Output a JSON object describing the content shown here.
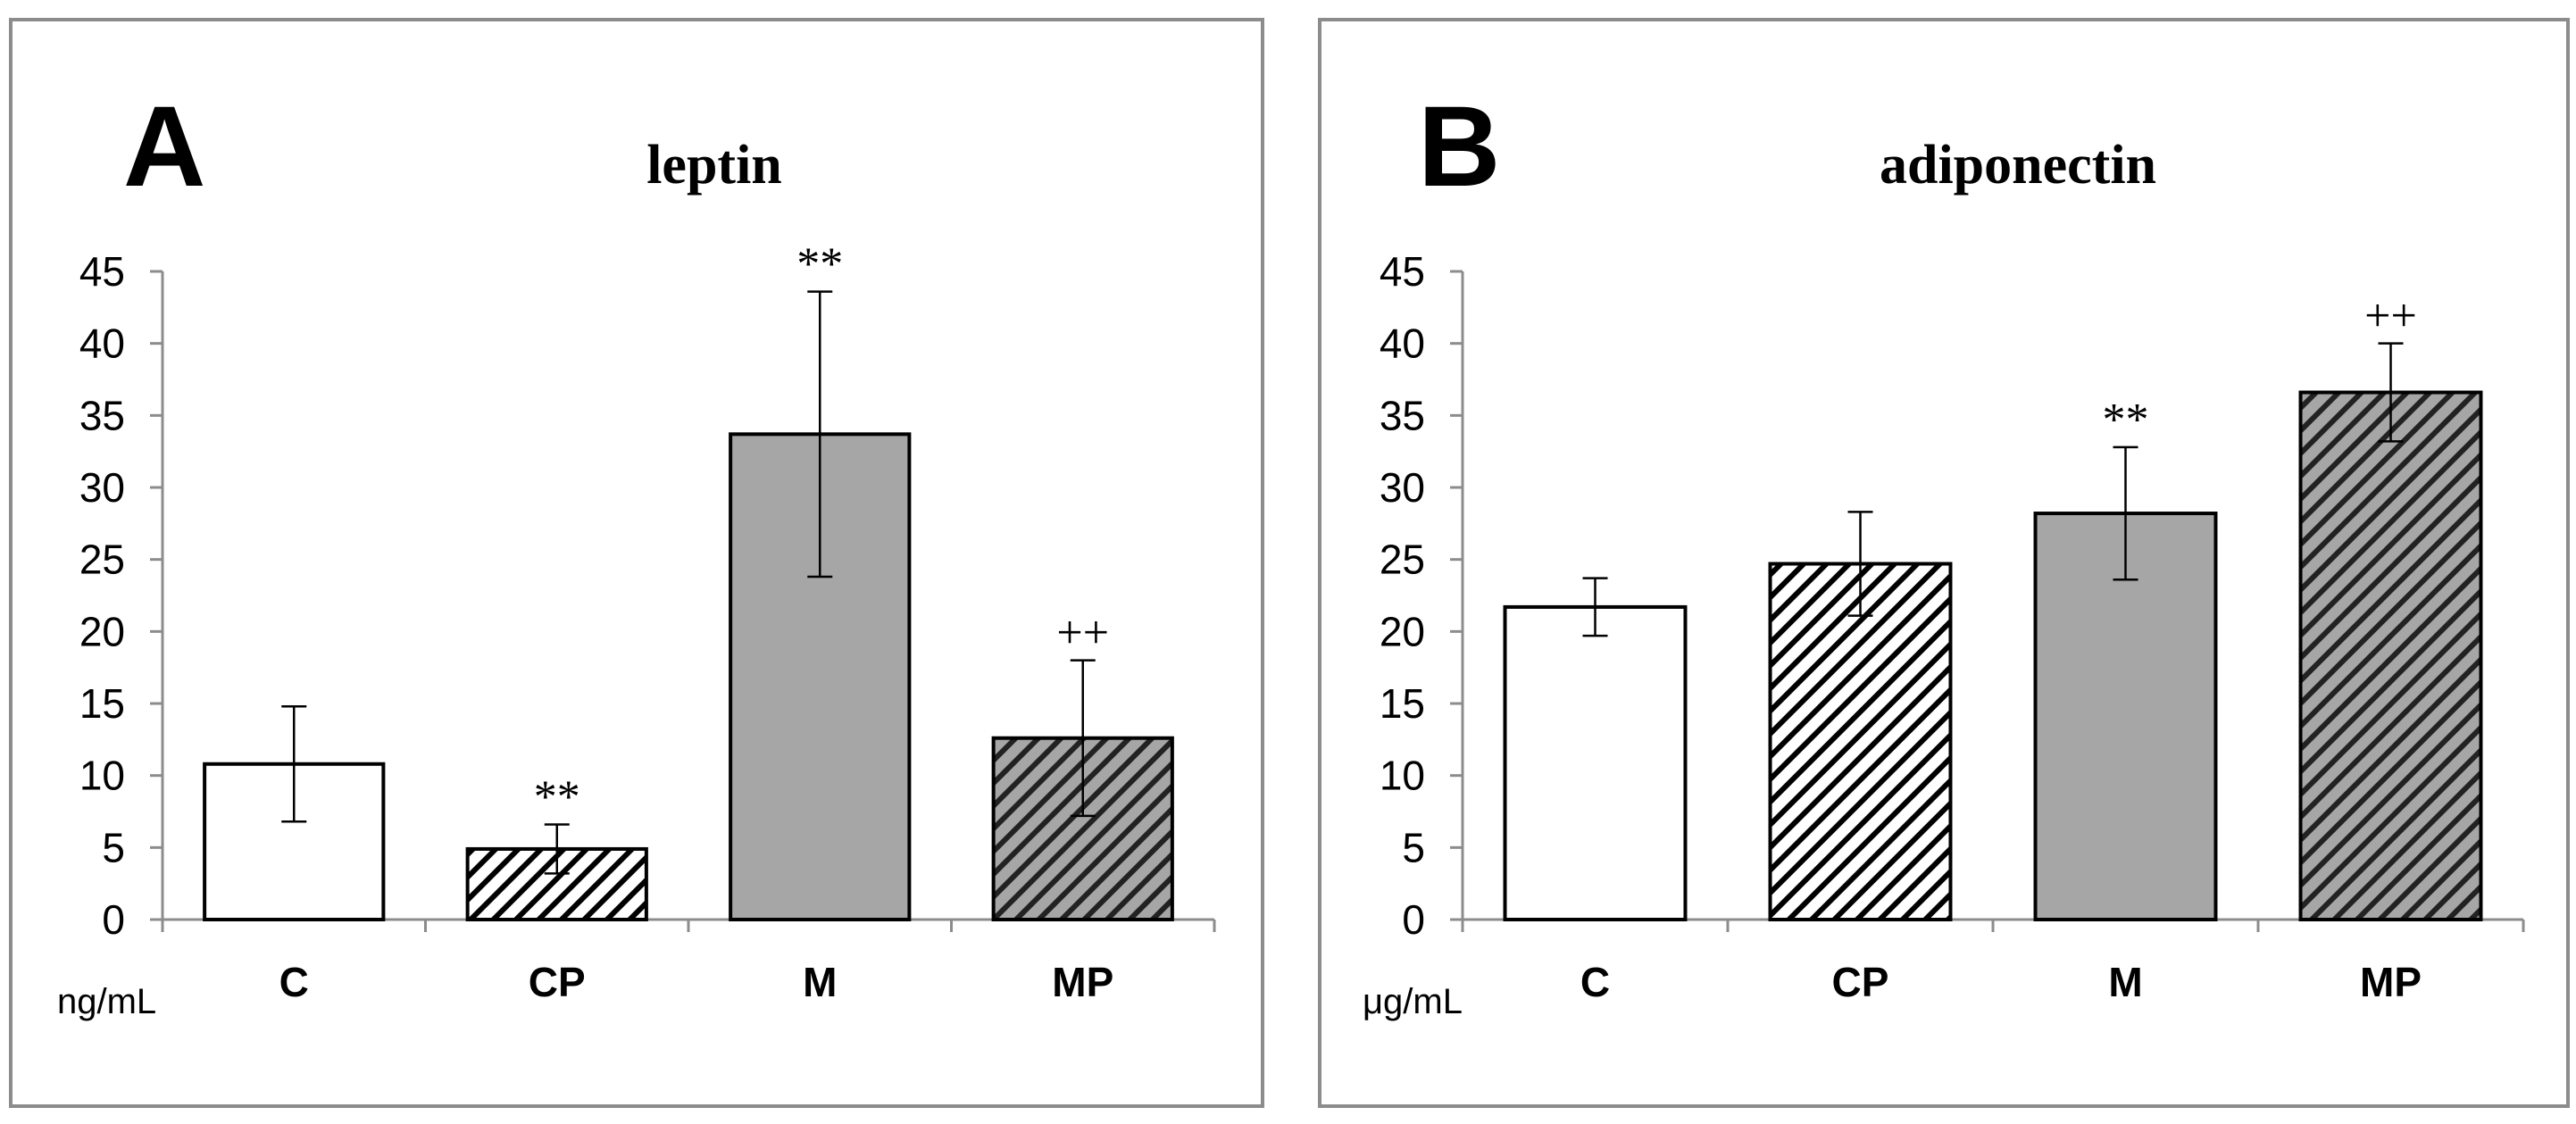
{
  "chart_data": [
    {
      "type": "bar",
      "panel": "A",
      "title": "leptin",
      "unit": "ng/mL",
      "categories": [
        "C",
        "CP",
        "M",
        "MP"
      ],
      "values": [
        10.8,
        4.9,
        33.7,
        12.6
      ],
      "errors": [
        4.0,
        1.7,
        9.9,
        5.4
      ],
      "annotations": [
        "",
        "**",
        "**",
        "++"
      ],
      "patterns": [
        "white",
        "hatch-white",
        "gray",
        "hatch-gray"
      ],
      "ylim": [
        0,
        45
      ],
      "yticks": [
        0,
        5,
        10,
        15,
        20,
        25,
        30,
        35,
        40,
        45
      ],
      "grid": false
    },
    {
      "type": "bar",
      "panel": "B",
      "title": "adiponectin",
      "unit": "μg/mL",
      "categories": [
        "C",
        "CP",
        "M",
        "MP"
      ],
      "values": [
        21.7,
        24.7,
        28.2,
        36.6
      ],
      "errors": [
        2.0,
        3.6,
        4.6,
        3.4
      ],
      "annotations": [
        "",
        "",
        "**",
        "++"
      ],
      "patterns": [
        "white",
        "hatch-white",
        "gray",
        "hatch-gray"
      ],
      "ylim": [
        0,
        45
      ],
      "yticks": [
        0,
        5,
        10,
        15,
        20,
        25,
        30,
        35,
        40,
        45
      ],
      "grid": false
    }
  ],
  "colors": {
    "frame": "#8c8c8c",
    "gray_fill": "#a6a6a6",
    "bar_edge": "#000000",
    "hatch_dark": "#222222"
  }
}
